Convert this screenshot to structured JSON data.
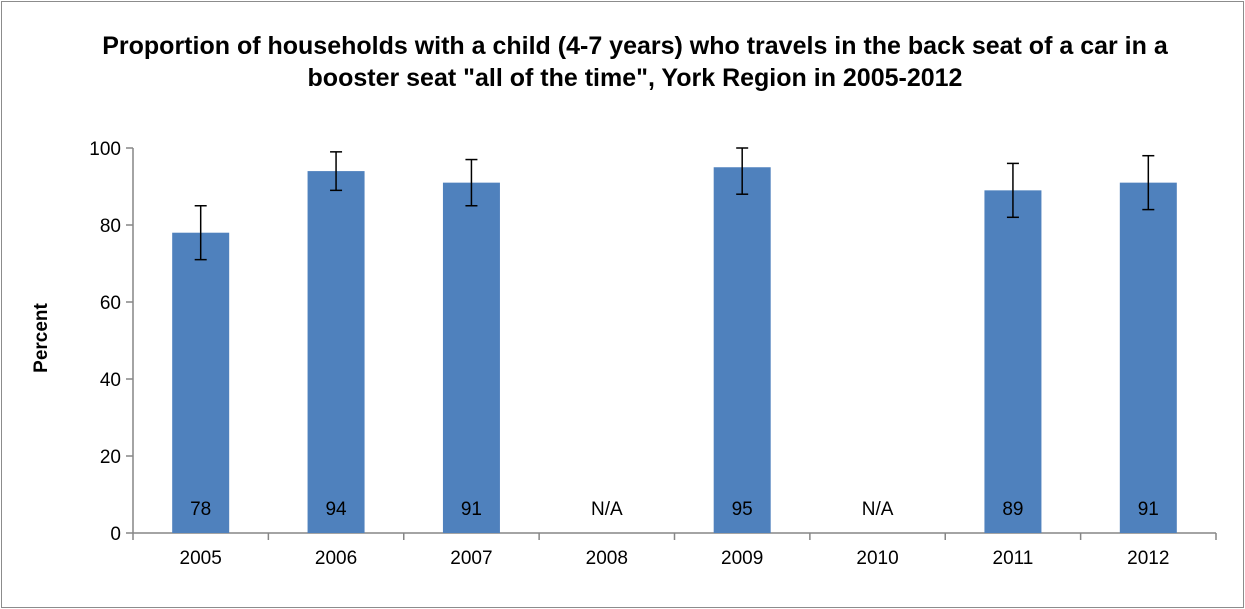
{
  "chart_data": {
    "type": "bar",
    "title": "Proportion of households with a child (4-7 years) who travels in the back seat of a car in a booster seat \"all of the time\", York Region in 2005-2012",
    "xlabel": "",
    "ylabel": "Percent",
    "ylim": [
      0,
      100
    ],
    "yticks": [
      0,
      20,
      40,
      60,
      80,
      100
    ],
    "categories": [
      "2005",
      "2006",
      "2007",
      "2008",
      "2009",
      "2010",
      "2011",
      "2012"
    ],
    "values": [
      78,
      94,
      91,
      null,
      95,
      null,
      89,
      91
    ],
    "data_labels": [
      "78",
      "94",
      "91",
      "N/A",
      "95",
      "N/A",
      "89",
      "91"
    ],
    "error_bars": [
      {
        "low": 71,
        "high": 85
      },
      {
        "low": 89,
        "high": 99
      },
      {
        "low": 85,
        "high": 97
      },
      null,
      {
        "low": 88,
        "high": 100
      },
      null,
      {
        "low": 82,
        "high": 96
      },
      {
        "low": 84,
        "high": 98
      }
    ],
    "bar_color": "#4f81bd",
    "grid": false,
    "legend": "none"
  }
}
